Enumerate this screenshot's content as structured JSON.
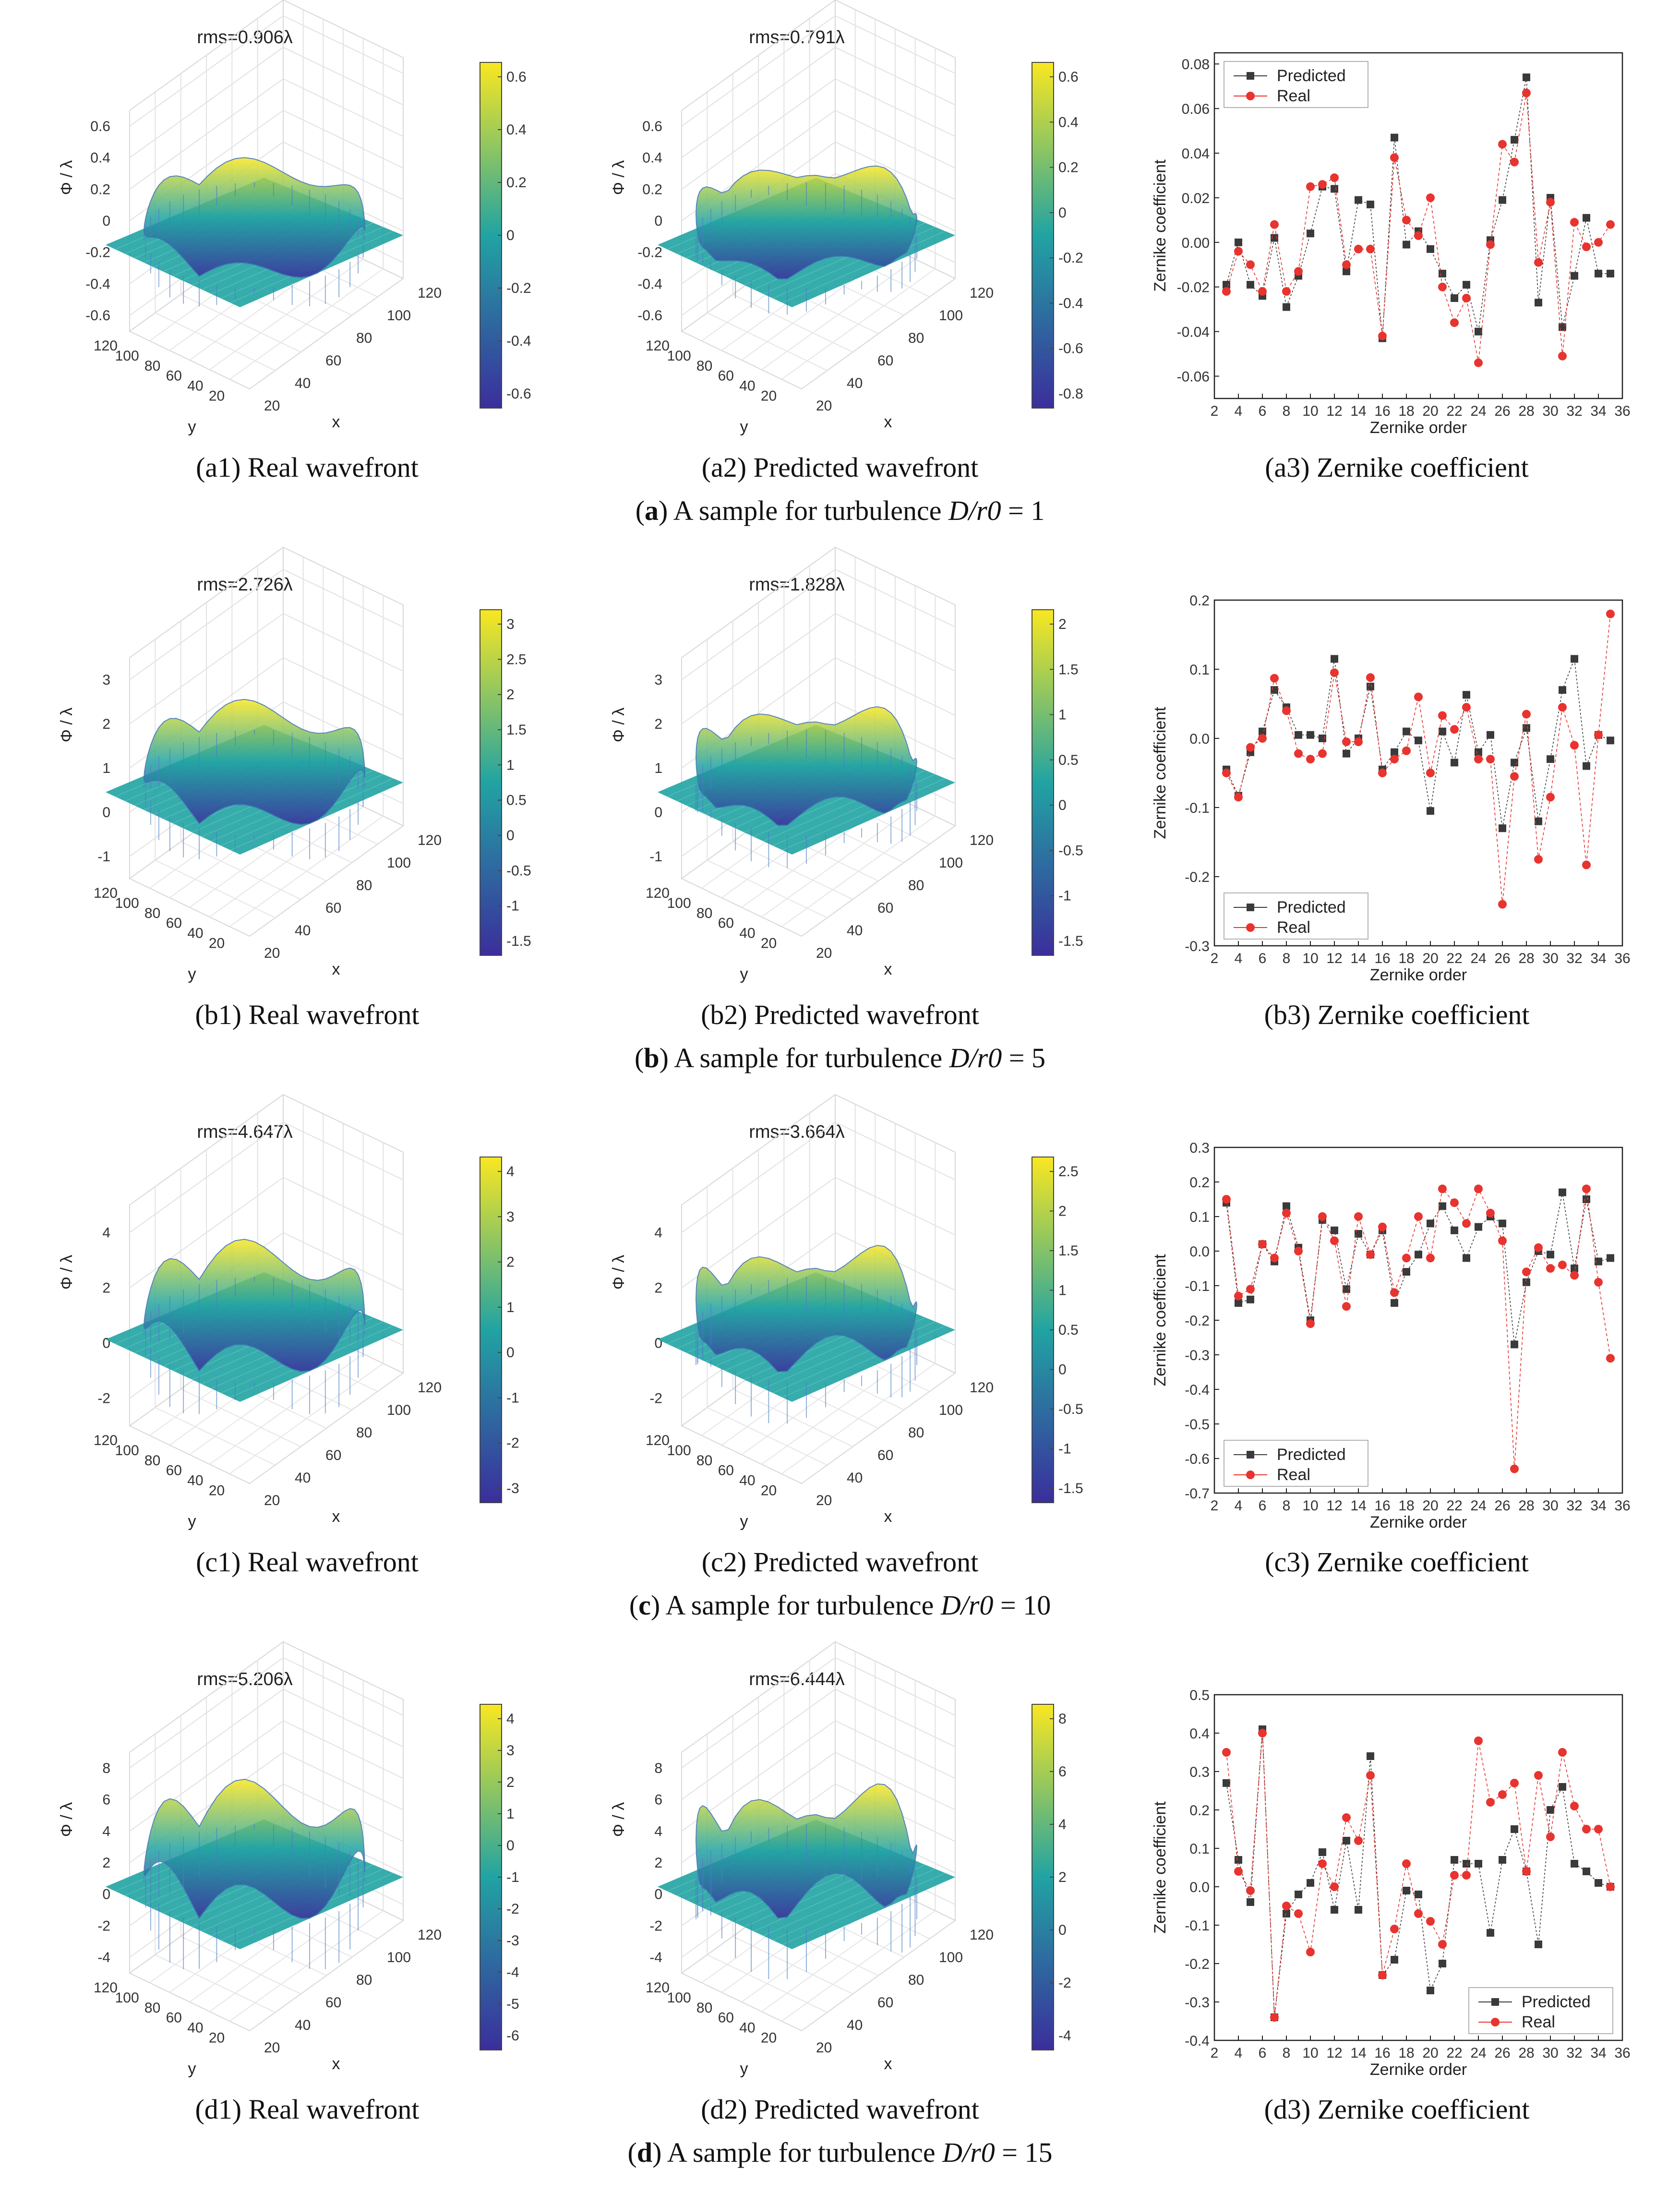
{
  "rows": [
    {
      "key": "a",
      "real": {
        "caption": "(a1) Real wavefront",
        "rms": "rms=0.906λ",
        "zticks": [
          "0.6",
          "0.4",
          "0.2",
          "0",
          "-0.2",
          "-0.4",
          "-0.6"
        ],
        "cbticks": [
          "0.6",
          "0.4",
          "0.2",
          "0",
          "-0.2",
          "-0.4",
          "-0.6"
        ]
      },
      "pred": {
        "caption": "(a2) Predicted wavefront",
        "rms": "rms=0.791λ",
        "zticks": [
          "0.6",
          "0.4",
          "0.2",
          "0",
          "-0.2",
          "-0.4",
          "-0.6"
        ],
        "cbticks": [
          "0.6",
          "0.4",
          "0.2",
          "0",
          "-0.2",
          "-0.4",
          "-0.6",
          "-0.8"
        ]
      },
      "zern_caption": "(a3) Zernike coefficient",
      "row_caption": {
        "letter": "a",
        "text": "A sample for turbulence",
        "ratio": "D/r0",
        "value": "1"
      }
    },
    {
      "key": "b",
      "real": {
        "caption": "(b1) Real wavefront",
        "rms": "rms=2.726λ",
        "zticks": [
          "3",
          "2",
          "1",
          "0",
          "-1"
        ],
        "cbticks": [
          "3",
          "2.5",
          "2",
          "1.5",
          "1",
          "0.5",
          "0",
          "-0.5",
          "-1",
          "-1.5"
        ]
      },
      "pred": {
        "caption": "(b2) Predicted wavefront",
        "rms": "rms=1.828λ",
        "zticks": [
          "3",
          "2",
          "1",
          "0",
          "-1"
        ],
        "cbticks": [
          "2",
          "1.5",
          "1",
          "0.5",
          "0",
          "-0.5",
          "-1",
          "-1.5"
        ]
      },
      "zern_caption": "(b3) Zernike coefficient",
      "row_caption": {
        "letter": "b",
        "text": "A sample for turbulence",
        "ratio": "D/r0",
        "value": "5"
      }
    },
    {
      "key": "c",
      "real": {
        "caption": "(c1) Real wavefront",
        "rms": "rms=4.647λ",
        "zticks": [
          "4",
          "2",
          "0",
          "-2"
        ],
        "cbticks": [
          "4",
          "3",
          "2",
          "1",
          "0",
          "-1",
          "-2",
          "-3"
        ]
      },
      "pred": {
        "caption": "(c2) Predicted wavefront",
        "rms": "rms=3.664λ",
        "zticks": [
          "4",
          "2",
          "0",
          "-2"
        ],
        "cbticks": [
          "2.5",
          "2",
          "1.5",
          "1",
          "0.5",
          "0",
          "-0.5",
          "-1",
          "-1.5"
        ]
      },
      "zern_caption": "(c3) Zernike coefficient",
      "row_caption": {
        "letter": "c",
        "text": "A sample for turbulence",
        "ratio": "D/r0",
        "value": "10"
      }
    },
    {
      "key": "d",
      "real": {
        "caption": "(d1) Real wavefront",
        "rms": "rms=5.206λ",
        "zticks": [
          "8",
          "6",
          "4",
          "2",
          "0",
          "-2",
          "-4"
        ],
        "cbticks": [
          "4",
          "3",
          "2",
          "1",
          "0",
          "-1",
          "-2",
          "-3",
          "-4",
          "-5",
          "-6"
        ]
      },
      "pred": {
        "caption": "(d2) Predicted wavefront",
        "rms": "rms=6.444λ",
        "zticks": [
          "8",
          "6",
          "4",
          "2",
          "0",
          "-2",
          "-4"
        ],
        "cbticks": [
          "8",
          "6",
          "4",
          "2",
          "0",
          "-2",
          "-4"
        ]
      },
      "zern_caption": "(d3) Zernike coefficient",
      "row_caption": {
        "letter": "d",
        "text": "A sample for turbulence",
        "ratio": "D/r0",
        "value": "15"
      }
    }
  ],
  "surface_axes": {
    "zlabel": "Φ / λ",
    "xlabel": "x",
    "ylabel": "y",
    "xticks": [
      "20",
      "40",
      "60",
      "80",
      "100",
      "120"
    ],
    "yticks": [
      "120",
      "100",
      "80",
      "60",
      "40",
      "20"
    ]
  },
  "colors": {
    "predicted": "#3a3a3a",
    "real": "#e8332e",
    "cb_top": "#f9e721",
    "cb_mid": "#21a3a3",
    "cb_bottom": "#3b2e9c"
  },
  "chart_data": [
    {
      "type": "scatter",
      "xlabel": "Zernike order",
      "ylabel": "Zernike coefficient",
      "xlim": [
        2,
        36
      ],
      "ylim": [
        -0.07,
        0.085
      ],
      "xticks": [
        2,
        4,
        6,
        8,
        10,
        12,
        14,
        16,
        18,
        20,
        22,
        24,
        26,
        28,
        30,
        32,
        34,
        36
      ],
      "yticks": [
        0.08,
        0.06,
        0.04,
        0.02,
        0.0,
        -0.02,
        -0.04,
        -0.06
      ],
      "ytick_labels": [
        "0.08",
        "0.06",
        "0.04",
        "0.02",
        "0.00",
        "-0.02",
        "-0.04",
        "-0.06"
      ],
      "legend_position": "top-left",
      "x": [
        3,
        4,
        5,
        6,
        7,
        8,
        9,
        10,
        11,
        12,
        13,
        14,
        15,
        16,
        17,
        18,
        19,
        20,
        21,
        22,
        23,
        24,
        25,
        26,
        27,
        28,
        29,
        30,
        31,
        32,
        33,
        34,
        35
      ],
      "series": [
        {
          "name": "Predicted",
          "values": [
            -0.019,
            0.0,
            -0.019,
            -0.024,
            0.002,
            -0.029,
            -0.015,
            0.004,
            0.025,
            0.024,
            -0.013,
            0.019,
            0.017,
            -0.043,
            0.047,
            -0.001,
            0.005,
            -0.003,
            -0.014,
            -0.025,
            -0.019,
            -0.04,
            0.001,
            0.019,
            0.046,
            0.074,
            -0.027,
            0.02,
            -0.038,
            -0.015,
            0.011,
            -0.014,
            -0.014
          ]
        },
        {
          "name": "Real",
          "values": [
            -0.022,
            -0.004,
            -0.01,
            -0.022,
            0.008,
            -0.022,
            -0.013,
            0.025,
            0.026,
            0.029,
            -0.01,
            -0.003,
            -0.003,
            -0.042,
            0.038,
            0.01,
            0.003,
            0.02,
            -0.02,
            -0.036,
            -0.025,
            -0.054,
            -0.001,
            0.044,
            0.036,
            0.067,
            -0.009,
            0.018,
            -0.051,
            0.009,
            -0.002,
            0.0,
            0.008
          ]
        }
      ]
    },
    {
      "type": "scatter",
      "xlabel": "Zernike order",
      "ylabel": "Zernike coefficient",
      "xlim": [
        2,
        36
      ],
      "ylim": [
        -0.3,
        0.2
      ],
      "xticks": [
        2,
        4,
        6,
        8,
        10,
        12,
        14,
        16,
        18,
        20,
        22,
        24,
        26,
        28,
        30,
        32,
        34,
        36
      ],
      "yticks": [
        0.2,
        0.1,
        0.0,
        -0.1,
        -0.2,
        -0.3
      ],
      "ytick_labels": [
        "0.2",
        "0.1",
        "0.0",
        "-0.1",
        "-0.2",
        "-0.3"
      ],
      "legend_position": "bottom-left",
      "x": [
        3,
        4,
        5,
        6,
        7,
        8,
        9,
        10,
        11,
        12,
        13,
        14,
        15,
        16,
        17,
        18,
        19,
        20,
        21,
        22,
        23,
        24,
        25,
        26,
        27,
        28,
        29,
        30,
        31,
        32,
        33,
        34,
        35
      ],
      "series": [
        {
          "name": "Predicted",
          "values": [
            -0.045,
            -0.083,
            -0.02,
            0.01,
            0.07,
            0.045,
            0.005,
            0.005,
            0.0,
            0.115,
            -0.022,
            0.0,
            0.075,
            -0.045,
            -0.02,
            0.01,
            -0.003,
            -0.105,
            0.01,
            -0.035,
            0.063,
            -0.02,
            0.005,
            -0.13,
            -0.035,
            0.015,
            -0.12,
            -0.03,
            0.07,
            0.115,
            -0.04,
            0.005,
            -0.003
          ]
        },
        {
          "name": "Real",
          "values": [
            -0.05,
            -0.085,
            -0.013,
            0.0,
            0.087,
            0.04,
            -0.022,
            -0.03,
            -0.022,
            0.095,
            -0.005,
            -0.005,
            0.088,
            -0.05,
            -0.03,
            -0.018,
            0.06,
            -0.05,
            0.033,
            0.013,
            0.045,
            -0.03,
            -0.03,
            -0.24,
            -0.055,
            0.035,
            -0.175,
            -0.085,
            0.045,
            -0.01,
            -0.183,
            0.005,
            0.18
          ]
        }
      ]
    },
    {
      "type": "scatter",
      "xlabel": "Zernike order",
      "ylabel": "Zernike coefficient",
      "xlim": [
        2,
        36
      ],
      "ylim": [
        -0.7,
        0.3
      ],
      "xticks": [
        2,
        4,
        6,
        8,
        10,
        12,
        14,
        16,
        18,
        20,
        22,
        24,
        26,
        28,
        30,
        32,
        34,
        36
      ],
      "yticks": [
        0.3,
        0.2,
        0.1,
        0.0,
        -0.1,
        -0.2,
        -0.3,
        -0.4,
        -0.5,
        -0.6,
        -0.7
      ],
      "ytick_labels": [
        "0.3",
        "0.2",
        "0.1",
        "0.0",
        "-0.1",
        "-0.2",
        "-0.3",
        "-0.4",
        "-0.5",
        "-0.6",
        "-0.7"
      ],
      "legend_position": "bottom-left",
      "x": [
        3,
        4,
        5,
        6,
        7,
        8,
        9,
        10,
        11,
        12,
        13,
        14,
        15,
        16,
        17,
        18,
        19,
        20,
        21,
        22,
        23,
        24,
        25,
        26,
        27,
        28,
        29,
        30,
        31,
        32,
        33,
        34,
        35
      ],
      "series": [
        {
          "name": "Predicted",
          "values": [
            0.14,
            -0.15,
            -0.14,
            0.02,
            -0.03,
            0.13,
            0.01,
            -0.2,
            0.09,
            0.06,
            -0.11,
            0.05,
            -0.01,
            0.06,
            -0.15,
            -0.06,
            -0.01,
            0.08,
            0.13,
            0.06,
            -0.02,
            0.07,
            0.1,
            0.08,
            -0.27,
            -0.09,
            0.0,
            -0.01,
            0.17,
            -0.05,
            0.15,
            -0.03,
            -0.02
          ]
        },
        {
          "name": "Real",
          "values": [
            0.15,
            -0.13,
            -0.11,
            0.02,
            -0.02,
            0.11,
            0.0,
            -0.21,
            0.1,
            0.03,
            -0.16,
            0.1,
            -0.01,
            0.07,
            -0.12,
            -0.02,
            0.1,
            -0.02,
            0.18,
            0.14,
            0.08,
            0.18,
            0.11,
            0.03,
            -0.63,
            -0.06,
            0.01,
            -0.05,
            -0.04,
            -0.07,
            0.18,
            -0.09,
            -0.31
          ]
        }
      ]
    },
    {
      "type": "scatter",
      "xlabel": "Zernike order",
      "ylabel": "Zernike coefficient",
      "xlim": [
        2,
        36
      ],
      "ylim": [
        -0.4,
        0.5
      ],
      "xticks": [
        2,
        4,
        6,
        8,
        10,
        12,
        14,
        16,
        18,
        20,
        22,
        24,
        26,
        28,
        30,
        32,
        34,
        36
      ],
      "yticks": [
        0.5,
        0.4,
        0.3,
        0.2,
        0.1,
        0.0,
        -0.1,
        -0.2,
        -0.3,
        -0.4
      ],
      "ytick_labels": [
        "0.5",
        "0.4",
        "0.3",
        "0.2",
        "0.1",
        "0.0",
        "-0.1",
        "-0.2",
        "-0.3",
        "-0.4"
      ],
      "legend_position": "bottom-right",
      "x": [
        3,
        4,
        5,
        6,
        7,
        8,
        9,
        10,
        11,
        12,
        13,
        14,
        15,
        16,
        17,
        18,
        19,
        20,
        21,
        22,
        23,
        24,
        25,
        26,
        27,
        28,
        29,
        30,
        31,
        32,
        33,
        34,
        35
      ],
      "series": [
        {
          "name": "Predicted",
          "values": [
            0.27,
            0.07,
            -0.04,
            0.41,
            -0.34,
            -0.07,
            -0.02,
            0.01,
            0.09,
            -0.06,
            0.12,
            -0.06,
            0.34,
            -0.23,
            -0.19,
            -0.01,
            -0.02,
            -0.27,
            -0.2,
            0.07,
            0.06,
            0.06,
            -0.12,
            0.07,
            0.15,
            0.04,
            -0.15,
            0.2,
            0.26,
            0.06,
            0.04,
            0.01,
            0.0
          ]
        },
        {
          "name": "Real",
          "values": [
            0.35,
            0.04,
            -0.01,
            0.4,
            -0.34,
            -0.05,
            -0.07,
            -0.17,
            0.06,
            0.0,
            0.18,
            0.12,
            0.29,
            -0.23,
            -0.11,
            0.06,
            -0.07,
            -0.09,
            -0.15,
            0.03,
            0.03,
            0.38,
            0.22,
            0.24,
            0.27,
            0.04,
            0.29,
            0.13,
            0.35,
            0.21,
            0.15,
            0.15,
            0.0
          ]
        }
      ]
    }
  ]
}
